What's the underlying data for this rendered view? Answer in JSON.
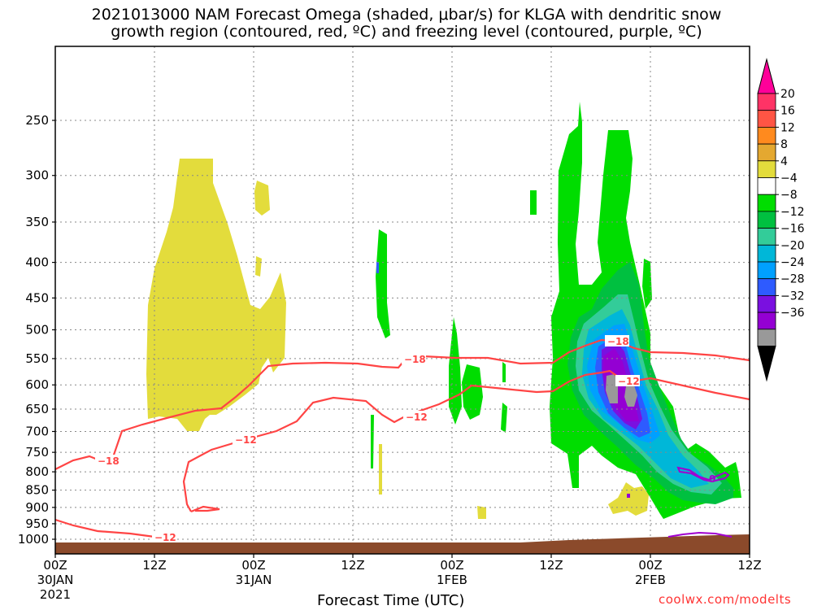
{
  "title_line1": "2021013000 NAM Forecast Omega (shaded, μbar/s) for KLGA with dendritic snow",
  "title_line2": "growth region (contoured, red, ºC) and freezing level (contoured, purple, ºC)",
  "xlabel": "Forecast Time (UTC)",
  "credit": "coolwx.com/modelts",
  "colors": {
    "green": "#00dd00",
    "dgreen": "#00c040",
    "teal": "#33cc99",
    "cyan": "#00b7d8",
    "lblue": "#00a0ff",
    "blue": "#2e5bff",
    "indigo": "#5a1ee8",
    "violet": "#9400d3",
    "gray": "#999999",
    "yellow": "#e3dc3c",
    "red_contour": "#ff4444",
    "purple_contour": "#a000d0",
    "terrain": "#8b4a2b"
  },
  "chart_data": {
    "type": "heatmap",
    "ylabel": "",
    "xlabel": "Forecast Time (UTC)",
    "y_pressure_ticks": [
      250,
      300,
      350,
      400,
      450,
      500,
      550,
      600,
      650,
      700,
      750,
      800,
      850,
      900,
      950,
      1000
    ],
    "x_ticks": [
      {
        "hour": 0,
        "label": "00Z",
        "sub": "30JAN",
        "sub2": "2021"
      },
      {
        "hour": 12,
        "label": "12Z",
        "sub": "",
        "sub2": ""
      },
      {
        "hour": 24,
        "label": "00Z",
        "sub": "31JAN",
        "sub2": ""
      },
      {
        "hour": 36,
        "label": "12Z",
        "sub": "",
        "sub2": ""
      },
      {
        "hour": 48,
        "label": "00Z",
        "sub": "1FEB",
        "sub2": ""
      },
      {
        "hour": 60,
        "label": "12Z",
        "sub": "",
        "sub2": ""
      },
      {
        "hour": 72,
        "label": "00Z",
        "sub": "2FEB",
        "sub2": ""
      },
      {
        "hour": 84,
        "label": "12Z",
        "sub": "",
        "sub2": ""
      }
    ],
    "xlim_hours": [
      0,
      84
    ],
    "colorbar": {
      "labels": [
        "20",
        "16",
        "12",
        "8",
        "4",
        "−4",
        "−8",
        "−12",
        "−16",
        "−20",
        "−24",
        "−28",
        "−32",
        "−36"
      ],
      "fills": [
        "#ff3366",
        "#ff5544",
        "#ff8a1e",
        "#e4a830",
        "#e3dc3c",
        "#ffffff",
        "#00dd00",
        "#00c040",
        "#33cc99",
        "#00b7d8",
        "#00a0ff",
        "#2e5bff",
        "#7a10e0",
        "#9400d3",
        "#999999"
      ],
      "top_arrow": "#ff0099",
      "bottom_arrow": "#000000"
    },
    "contours": [
      {
        "value": -18,
        "label": "−18",
        "color": "#ff4444"
      },
      {
        "value": -12,
        "label": "−12",
        "color": "#ff4444"
      },
      {
        "value": 0,
        "label": "0",
        "color": "#a000d0"
      }
    ]
  }
}
